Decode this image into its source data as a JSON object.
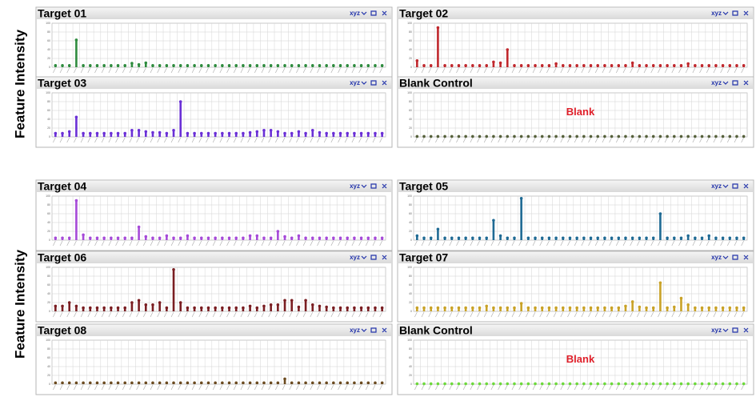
{
  "side_labels": [
    "Feature Intensity",
    "Feature Intensity"
  ],
  "chart_data": [
    {
      "type": "bar",
      "title": "Target 01",
      "menu": "xyz",
      "color": "#2e8b3e",
      "ylim": [
        0,
        100
      ],
      "yticks": [
        0,
        20,
        40,
        60,
        80,
        100
      ],
      "grid": true,
      "values": [
        4,
        4,
        4,
        62,
        4,
        4,
        4,
        4,
        4,
        4,
        4,
        9,
        6,
        10,
        4,
        4,
        4,
        4,
        4,
        4,
        4,
        4,
        4,
        4,
        4,
        4,
        4,
        4,
        4,
        4,
        4,
        4,
        4,
        4,
        4,
        4,
        4,
        4,
        4,
        4,
        4,
        4,
        4,
        4,
        4,
        4,
        4,
        4
      ]
    },
    {
      "type": "bar",
      "title": "Target 02",
      "menu": "xyz",
      "color": "#c0282d",
      "ylim": [
        0,
        100
      ],
      "yticks": [
        0,
        20,
        40,
        60,
        80,
        100
      ],
      "grid": true,
      "values": [
        15,
        4,
        4,
        90,
        4,
        4,
        4,
        4,
        4,
        4,
        4,
        12,
        10,
        40,
        4,
        4,
        4,
        4,
        4,
        4,
        8,
        4,
        4,
        4,
        4,
        4,
        4,
        4,
        4,
        4,
        4,
        10,
        4,
        4,
        4,
        4,
        4,
        4,
        4,
        8,
        4,
        4,
        4,
        4,
        4,
        4,
        4,
        4
      ]
    },
    {
      "type": "bar",
      "title": "Target 03",
      "menu": "xyz",
      "color": "#6a2fd6",
      "ylim": [
        0,
        100
      ],
      "yticks": [
        0,
        20,
        40,
        60,
        80,
        100
      ],
      "grid": true,
      "values": [
        8,
        8,
        12,
        45,
        8,
        8,
        8,
        8,
        8,
        8,
        8,
        15,
        15,
        12,
        10,
        10,
        8,
        15,
        80,
        8,
        8,
        8,
        8,
        8,
        8,
        8,
        8,
        8,
        10,
        12,
        15,
        15,
        12,
        8,
        8,
        12,
        8,
        15,
        10,
        8,
        8,
        8,
        8,
        8,
        8,
        8,
        8,
        8
      ]
    },
    {
      "type": "bar",
      "title": "Blank Control",
      "menu": "xyz",
      "color": "#55603a",
      "annotation": "Blank",
      "ylim": [
        0,
        100
      ],
      "yticks": [
        0,
        20,
        40,
        60,
        80,
        100
      ],
      "grid": true,
      "values": [
        1,
        1,
        1,
        1,
        1,
        1,
        1,
        1,
        1,
        1,
        1,
        1,
        1,
        1,
        1,
        1,
        1,
        1,
        1,
        1,
        1,
        1,
        1,
        1,
        1,
        1,
        1,
        1,
        1,
        1,
        1,
        1,
        1,
        1,
        1,
        1,
        1,
        1,
        1,
        1,
        1,
        1,
        1,
        1,
        1,
        1,
        1,
        1
      ]
    },
    {
      "type": "bar",
      "title": "Target 04",
      "menu": "xyz",
      "color": "#a64ad8",
      "ylim": [
        0,
        100
      ],
      "yticks": [
        0,
        20,
        40,
        60,
        80,
        100
      ],
      "grid": true,
      "values": [
        5,
        5,
        5,
        90,
        12,
        5,
        5,
        5,
        5,
        5,
        5,
        5,
        30,
        8,
        5,
        5,
        10,
        5,
        5,
        10,
        5,
        5,
        5,
        5,
        5,
        5,
        5,
        5,
        10,
        10,
        5,
        5,
        20,
        8,
        5,
        10,
        5,
        5,
        5,
        5,
        5,
        5,
        5,
        5,
        5,
        5,
        5,
        5
      ]
    },
    {
      "type": "bar",
      "title": "Target 05",
      "menu": "xyz",
      "color": "#1f6a94",
      "ylim": [
        0,
        100
      ],
      "yticks": [
        0,
        20,
        40,
        60,
        80,
        100
      ],
      "grid": true,
      "values": [
        10,
        5,
        5,
        25,
        5,
        5,
        5,
        5,
        5,
        5,
        5,
        45,
        10,
        5,
        5,
        95,
        5,
        5,
        5,
        5,
        5,
        5,
        5,
        5,
        5,
        5,
        5,
        5,
        5,
        5,
        5,
        5,
        5,
        5,
        5,
        60,
        5,
        5,
        5,
        10,
        5,
        5,
        10,
        5,
        5,
        5,
        5,
        5
      ]
    },
    {
      "type": "bar",
      "title": "Target 06",
      "menu": "xyz",
      "color": "#7a1e22",
      "ylim": [
        0,
        100
      ],
      "yticks": [
        0,
        20,
        40,
        60,
        80,
        100
      ],
      "grid": true,
      "values": [
        12,
        12,
        20,
        12,
        8,
        8,
        8,
        8,
        8,
        8,
        8,
        20,
        25,
        15,
        15,
        20,
        8,
        95,
        20,
        8,
        8,
        8,
        8,
        8,
        8,
        8,
        8,
        8,
        12,
        8,
        12,
        15,
        15,
        25,
        25,
        10,
        25,
        15,
        12,
        10,
        8,
        8,
        8,
        8,
        8,
        8,
        8,
        8
      ]
    },
    {
      "type": "bar",
      "title": "Target 07",
      "menu": "xyz",
      "color": "#c9a227",
      "ylim": [
        0,
        100
      ],
      "yticks": [
        0,
        20,
        40,
        60,
        80,
        100
      ],
      "grid": true,
      "values": [
        8,
        8,
        8,
        8,
        8,
        8,
        8,
        8,
        8,
        8,
        12,
        8,
        8,
        8,
        8,
        18,
        8,
        8,
        8,
        8,
        8,
        8,
        8,
        8,
        8,
        8,
        8,
        8,
        8,
        8,
        12,
        22,
        10,
        8,
        8,
        65,
        8,
        10,
        30,
        15,
        8,
        8,
        8,
        8,
        8,
        8,
        8,
        8
      ]
    },
    {
      "type": "bar",
      "title": "Target 08",
      "menu": "xyz",
      "color": "#6b4a1f",
      "ylim": [
        0,
        100
      ],
      "yticks": [
        0,
        20,
        40,
        60,
        80,
        100
      ],
      "grid": true,
      "values": [
        3,
        3,
        3,
        3,
        3,
        3,
        3,
        3,
        3,
        3,
        3,
        3,
        3,
        3,
        3,
        3,
        3,
        3,
        3,
        3,
        3,
        3,
        3,
        3,
        3,
        3,
        3,
        3,
        3,
        3,
        3,
        3,
        3,
        12,
        3,
        3,
        3,
        3,
        3,
        3,
        3,
        3,
        3,
        3,
        3,
        3,
        3,
        3
      ]
    },
    {
      "type": "bar",
      "title": "Blank Control",
      "menu": "xyz",
      "color": "#6cd93a",
      "annotation": "Blank",
      "ylim": [
        0,
        100
      ],
      "yticks": [
        0,
        20,
        40,
        60,
        80,
        100
      ],
      "grid": true,
      "values": [
        1,
        1,
        1,
        1,
        1,
        1,
        1,
        1,
        1,
        1,
        1,
        1,
        1,
        1,
        1,
        1,
        1,
        1,
        1,
        1,
        1,
        1,
        1,
        1,
        1,
        1,
        1,
        1,
        1,
        1,
        1,
        1,
        1,
        1,
        1,
        1,
        1,
        1,
        1,
        1,
        1,
        1,
        1,
        1,
        1,
        1,
        1,
        1
      ]
    }
  ]
}
